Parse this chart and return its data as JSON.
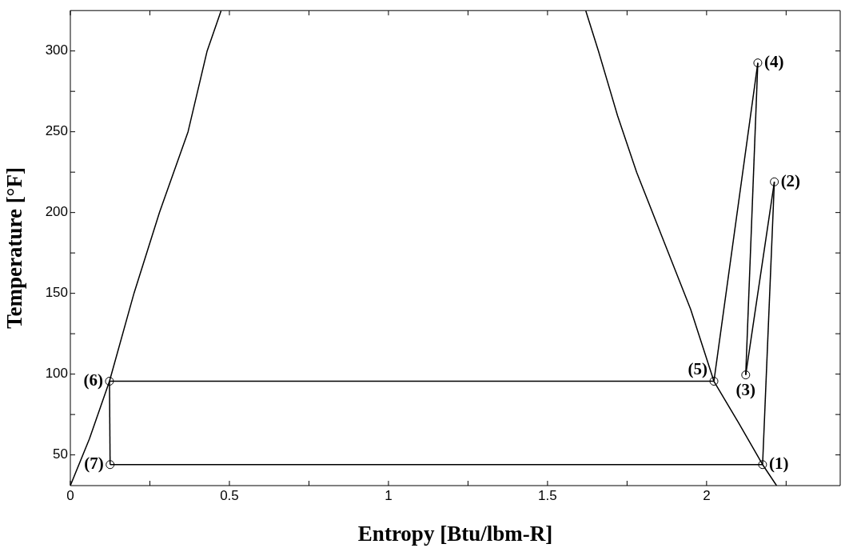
{
  "chart_data": {
    "type": "line",
    "xlabel": "Entropy [Btu/lbm-R]",
    "ylabel": "Temperature [°F]",
    "xlim": [
      0,
      2.42
    ],
    "ylim": [
      31,
      325
    ],
    "xticks": [
      0,
      {
        "value": 0.25,
        "label": null
      },
      0.5,
      {
        "value": 0.75,
        "label": null
      },
      1,
      {
        "value": 1.25,
        "label": null
      },
      1.5,
      {
        "value": 1.75,
        "label": null
      },
      2,
      {
        "value": 2.25,
        "label": null
      }
    ],
    "yticks": [
      50,
      {
        "value": 75,
        "label": null
      },
      100,
      {
        "value": 125,
        "label": null
      },
      150,
      {
        "value": 175,
        "label": null
      },
      200,
      {
        "value": 225,
        "label": null
      },
      250,
      {
        "value": 275,
        "label": null
      },
      300
    ],
    "grid": false,
    "legend": false,
    "series": [
      {
        "type": "line",
        "color": "#000000",
        "marker": "none",
        "x": [
          0,
          0.06,
          0.123,
          0.2,
          0.28,
          0.37,
          0.43,
          0.474
        ],
        "values": [
          31,
          60,
          95.6,
          150,
          200,
          250,
          300,
          325
        ]
      },
      {
        "type": "line",
        "color": "#000000",
        "marker": "none",
        "x": [
          1.62,
          1.66,
          1.72,
          1.78,
          1.86,
          1.95,
          2.023,
          2.1,
          2.176,
          2.22
        ],
        "values": [
          325,
          300,
          260,
          225,
          185,
          140,
          95.6,
          70,
          44,
          31
        ]
      },
      {
        "type": "line",
        "color": "#000000",
        "marker": "none",
        "x": [
          2.176,
          2.213
        ],
        "values": [
          44,
          219
        ]
      },
      {
        "type": "line",
        "color": "#000000",
        "marker": "none",
        "x": [
          2.213,
          2.123
        ],
        "values": [
          219,
          99.5
        ]
      },
      {
        "type": "line",
        "color": "#000000",
        "marker": "none",
        "x": [
          2.123,
          2.161
        ],
        "values": [
          99.5,
          292.6
        ]
      },
      {
        "type": "line",
        "color": "#000000",
        "marker": "none",
        "x": [
          2.161,
          2.023
        ],
        "values": [
          292.6,
          95.6
        ]
      },
      {
        "type": "line",
        "color": "#000000",
        "marker": "none",
        "x": [
          2.023,
          0.123
        ],
        "values": [
          95.6,
          95.6
        ]
      },
      {
        "type": "line",
        "color": "#000000",
        "marker": "none",
        "x": [
          0.123,
          0.125
        ],
        "values": [
          95.6,
          44
        ]
      },
      {
        "type": "line",
        "color": "#000000",
        "marker": "none",
        "x": [
          0.125,
          2.176
        ],
        "values": [
          44,
          44
        ]
      },
      {
        "type": "scatter",
        "color": "#000000",
        "marker": "circle",
        "x": [
          2.176,
          2.213,
          2.123,
          2.161,
          2.023,
          0.123,
          0.125
        ],
        "values": [
          44,
          219,
          99.5,
          292.6,
          95.6,
          95.6,
          44
        ]
      }
    ],
    "annotations": [
      {
        "text": "(1)",
        "x": 2.176,
        "y": 44
      },
      {
        "text": "(2)",
        "x": 2.213,
        "y": 219
      },
      {
        "text": "(3)",
        "x": 2.123,
        "y": 99.5
      },
      {
        "text": "(4)",
        "x": 2.161,
        "y": 292.6
      },
      {
        "text": "(5)",
        "x": 2.023,
        "y": 95.6
      },
      {
        "text": "(6)",
        "x": 0.123,
        "y": 95.6
      },
      {
        "text": "(7)",
        "x": 0.125,
        "y": 44
      }
    ]
  }
}
